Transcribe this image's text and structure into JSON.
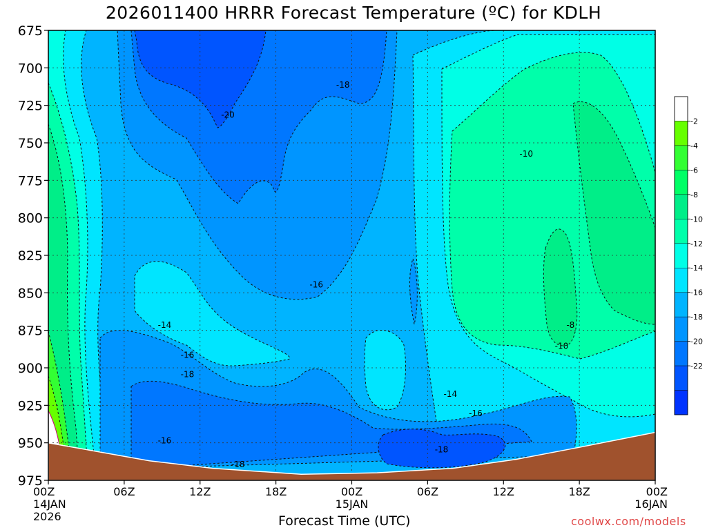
{
  "chart_data": {
    "type": "contour",
    "title": "2026011400 HRRR Forecast Temperature (ºC) for KDLH",
    "xlabel": "Forecast Time (UTC)",
    "ylabel": "",
    "y_axis": {
      "ticks": [
        675,
        700,
        725,
        750,
        775,
        800,
        825,
        850,
        875,
        900,
        925,
        950,
        975
      ],
      "range": [
        675,
        975
      ],
      "inverted": true
    },
    "x_axis": {
      "range_hours": [
        0,
        48
      ],
      "ticks": [
        {
          "hour": 0,
          "label": "00Z",
          "sub1": "14JAN",
          "sub2": "2026"
        },
        {
          "hour": 6,
          "label": "06Z",
          "sub1": "",
          "sub2": ""
        },
        {
          "hour": 12,
          "label": "12Z",
          "sub1": "",
          "sub2": ""
        },
        {
          "hour": 18,
          "label": "18Z",
          "sub1": "",
          "sub2": ""
        },
        {
          "hour": 24,
          "label": "00Z",
          "sub1": "15JAN",
          "sub2": ""
        },
        {
          "hour": 30,
          "label": "06Z",
          "sub1": "",
          "sub2": ""
        },
        {
          "hour": 36,
          "label": "12Z",
          "sub1": "",
          "sub2": ""
        },
        {
          "hour": 42,
          "label": "18Z",
          "sub1": "",
          "sub2": ""
        },
        {
          "hour": 48,
          "label": "00Z",
          "sub1": "16JAN",
          "sub2": ""
        }
      ]
    },
    "grid": true,
    "colorbar": {
      "position": "right",
      "levels": [
        {
          "label": "",
          "color": "#ffffff"
        },
        {
          "label": "-2",
          "color": "#66ff00"
        },
        {
          "label": "-4",
          "color": "#33ff33"
        },
        {
          "label": "-6",
          "color": "#00ff66"
        },
        {
          "label": "-8",
          "color": "#00ee88"
        },
        {
          "label": "-10",
          "color": "#00ffaa"
        },
        {
          "label": "-12",
          "color": "#00ffe6"
        },
        {
          "label": "-14",
          "color": "#00e5ff"
        },
        {
          "label": "-16",
          "color": "#00b4ff"
        },
        {
          "label": "-18",
          "color": "#0095ff"
        },
        {
          "label": "-20",
          "color": "#0077ff"
        },
        {
          "label": "-22",
          "color": "#0055ff"
        },
        {
          "label": "",
          "color": "#0033ff"
        }
      ]
    },
    "contour_labels": [
      {
        "text": "-20",
        "hour": 14.2,
        "p": 731
      },
      {
        "text": "-18",
        "hour": 23.3,
        "p": 711
      },
      {
        "text": "-10",
        "hour": 37.8,
        "p": 757
      },
      {
        "text": "-16",
        "hour": 21.2,
        "p": 844
      },
      {
        "text": "-14",
        "hour": 9.2,
        "p": 871
      },
      {
        "text": "-16",
        "hour": 11.0,
        "p": 891
      },
      {
        "text": "-18",
        "hour": 11.0,
        "p": 904
      },
      {
        "text": "-14",
        "hour": 31.8,
        "p": 917
      },
      {
        "text": "-16",
        "hour": 33.8,
        "p": 930
      },
      {
        "text": "-16",
        "hour": 9.2,
        "p": 948
      },
      {
        "text": "-18",
        "hour": 15.0,
        "p": 964
      },
      {
        "text": "-18",
        "hour": 31.1,
        "p": 954
      },
      {
        "text": "-8",
        "hour": 41.3,
        "p": 871
      },
      {
        "text": "-10",
        "hour": 40.6,
        "p": 885
      }
    ],
    "ground_color": "#a0522d",
    "surface_pressure": [
      {
        "hour": 0,
        "p": 950
      },
      {
        "hour": 4,
        "p": 956
      },
      {
        "hour": 8,
        "p": 962
      },
      {
        "hour": 13,
        "p": 967
      },
      {
        "hour": 20,
        "p": 971
      },
      {
        "hour": 26,
        "p": 970
      },
      {
        "hour": 32,
        "p": 967
      },
      {
        "hour": 37,
        "p": 961
      },
      {
        "hour": 42,
        "p": 953
      },
      {
        "hour": 48,
        "p": 943
      }
    ]
  },
  "credit": "coolwx.com/models"
}
